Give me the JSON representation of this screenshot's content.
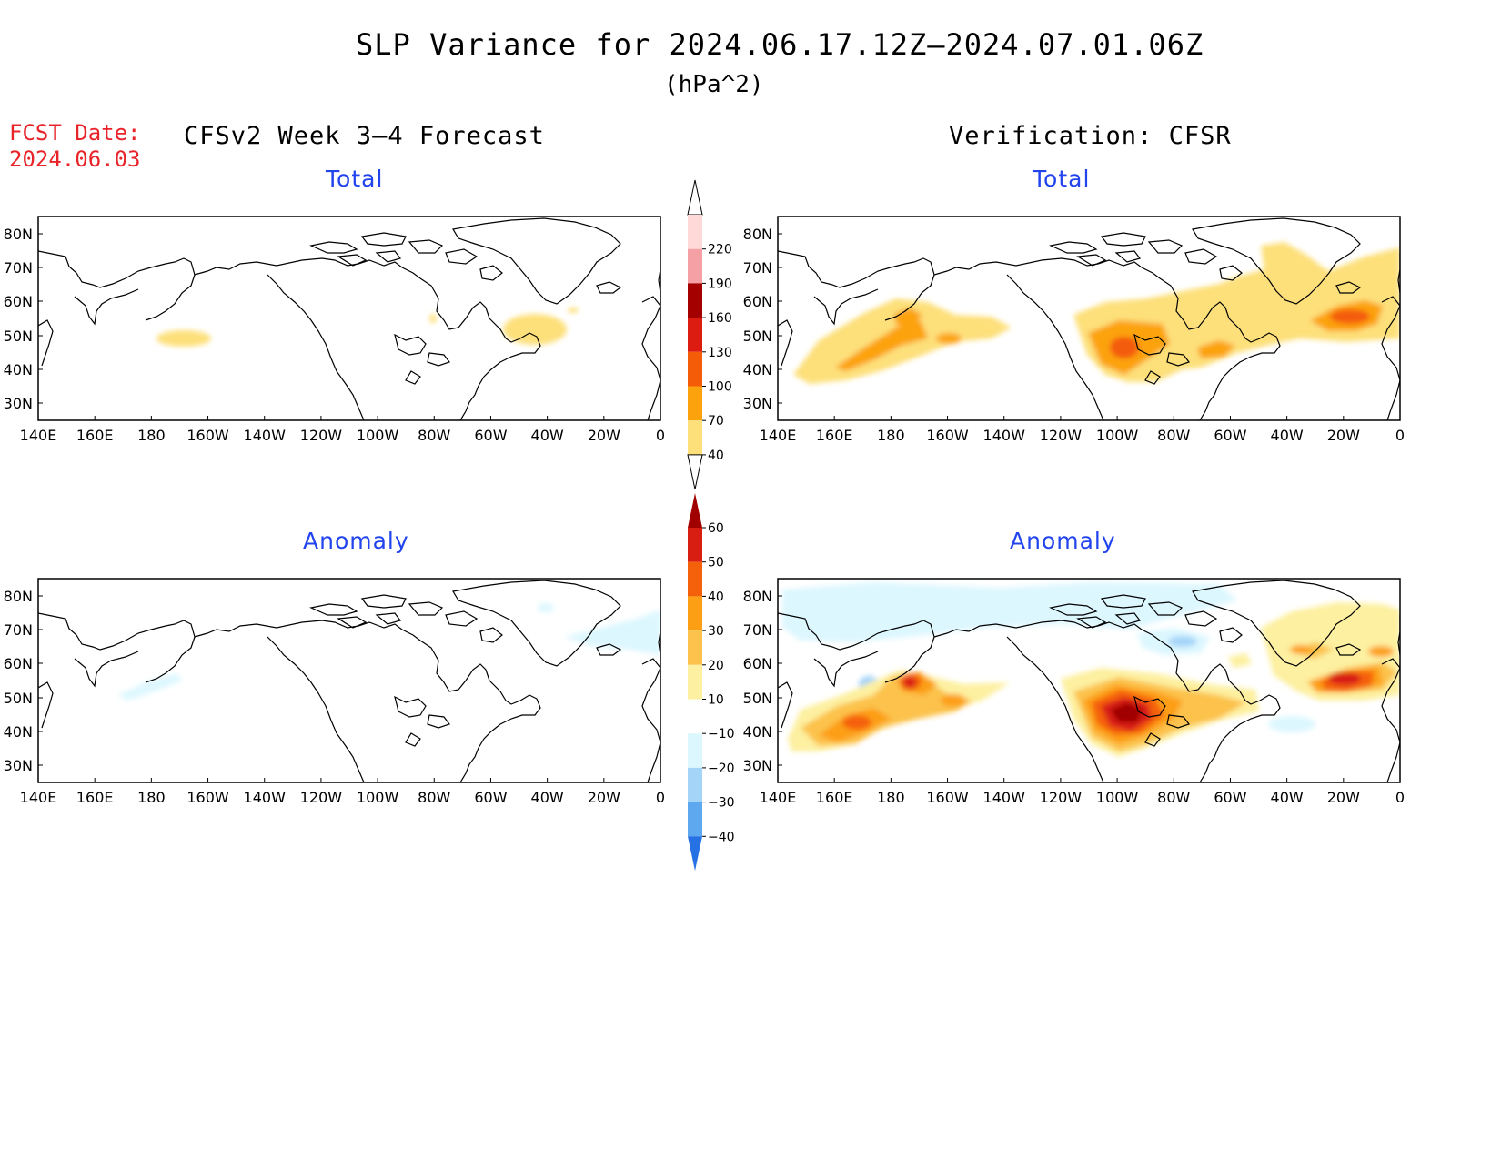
{
  "header": {
    "title": "SLP Variance for 2024.06.17.12Z—2024.07.01.06Z",
    "units": "(hPa^2)",
    "fcst_label": "FCST Date:",
    "fcst_date": "2024.06.03",
    "left_heading": "CFSv2 Week 3–4 Forecast",
    "right_heading": "Verification: CFSR"
  },
  "panels": {
    "top_left_label": "Total",
    "top_right_label": "Total",
    "bottom_left_label": "Anomaly",
    "bottom_right_label": "Anomaly"
  },
  "axes": {
    "lat_ticks": [
      "80N",
      "70N",
      "60N",
      "50N",
      "40N",
      "30N"
    ],
    "lon_ticks": [
      "140E",
      "160E",
      "180",
      "160W",
      "140W",
      "120W",
      "100W",
      "80W",
      "60W",
      "40W",
      "20W",
      "0"
    ]
  },
  "colorbar_total": {
    "levels": [
      "220",
      "190",
      "160",
      "130",
      "100",
      "70",
      "40"
    ],
    "colors": [
      "#ffd8d8",
      "#f4a0a4",
      "#a40000",
      "#dc1c10",
      "#f45c08",
      "#fca20c",
      "#fde07a"
    ]
  },
  "colorbar_anomaly": {
    "levels": [
      "60",
      "50",
      "40",
      "30",
      "20",
      "10",
      "−10",
      "−20",
      "−30",
      "−40"
    ],
    "colors": [
      "#a00000",
      "#d81e12",
      "#f5600a",
      "#fd9f14",
      "#fcc24c",
      "#fdf0a0",
      "#ffffff",
      "#ddf7ff",
      "#a4d4f8",
      "#5ea8f0",
      "#2672e4"
    ]
  }
}
